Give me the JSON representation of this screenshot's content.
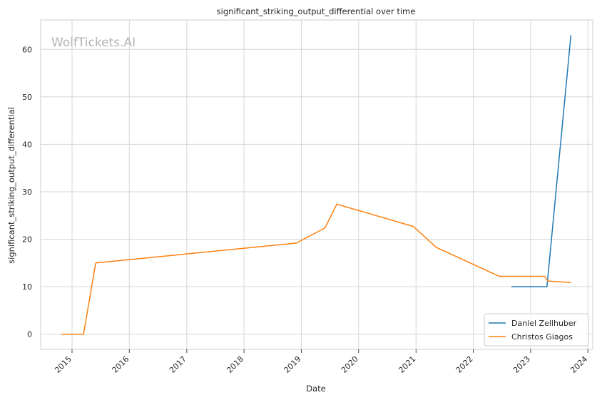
{
  "chart_data": {
    "type": "line",
    "title": "significant_striking_output_differential over time",
    "xlabel": "Date",
    "ylabel": "significant_striking_output_differential",
    "watermark": "WolfTickets.AI",
    "x_ticks": [
      "2015",
      "2016",
      "2017",
      "2018",
      "2019",
      "2020",
      "2021",
      "2022",
      "2023",
      "2024"
    ],
    "y_ticks": [
      0,
      10,
      20,
      30,
      40,
      50,
      60
    ],
    "xlim": [
      "2014-06-15",
      "2024-02-01"
    ],
    "ylim": [
      -3.2,
      66.2
    ],
    "grid": true,
    "legend_position": "lower-right",
    "series": [
      {
        "name": "Daniel Zellhuber",
        "color": "#1f77b4",
        "points": [
          {
            "x": "2022-09-01",
            "y": 10.0
          },
          {
            "x": "2023-04-15",
            "y": 10.0
          },
          {
            "x": "2023-09-15",
            "y": 63.0
          }
        ]
      },
      {
        "name": "Christos Giagos",
        "color": "#ff7f0e",
        "points": [
          {
            "x": "2014-10-25",
            "y": 0.0
          },
          {
            "x": "2015-03-15",
            "y": 0.0
          },
          {
            "x": "2015-06-01",
            "y": 15.0
          },
          {
            "x": "2018-12-01",
            "y": 19.2
          },
          {
            "x": "2019-06-01",
            "y": 22.4
          },
          {
            "x": "2019-08-15",
            "y": 27.4
          },
          {
            "x": "2020-12-15",
            "y": 22.7
          },
          {
            "x": "2021-05-10",
            "y": 18.3
          },
          {
            "x": "2022-06-15",
            "y": 12.2
          },
          {
            "x": "2023-04-01",
            "y": 12.2
          },
          {
            "x": "2023-04-20",
            "y": 11.2
          },
          {
            "x": "2023-09-15",
            "y": 10.9
          }
        ]
      }
    ]
  }
}
